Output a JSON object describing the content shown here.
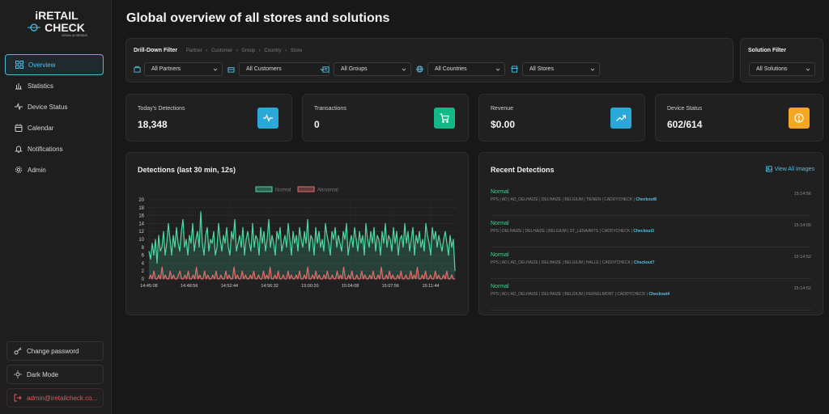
{
  "app": {
    "logo_line1": "iRETAIL",
    "logo_line2": "CHECK",
    "logo_tagline": "VISUAL AI SENSUS"
  },
  "sidebar": {
    "items": [
      {
        "label": "Overview",
        "icon": "grid-icon",
        "active": true
      },
      {
        "label": "Statistics",
        "icon": "bar-chart-icon"
      },
      {
        "label": "Device Status",
        "icon": "activity-icon"
      },
      {
        "label": "Calendar",
        "icon": "calendar-icon"
      },
      {
        "label": "Notifications",
        "icon": "bell-icon"
      },
      {
        "label": "Admin",
        "icon": "gear-icon"
      }
    ],
    "change_password": "Change password",
    "dark_mode": "Dark Mode",
    "user": "admin@iretailcheck.co..."
  },
  "page": {
    "title": "Global overview of all stores and solutions"
  },
  "drill": {
    "title": "Drill-Down Filter",
    "crumbs": [
      "Partner",
      "Customer",
      "Group",
      "Country",
      "Store"
    ],
    "selects": [
      "All Partners",
      "All Customers",
      "All Groups",
      "All Countries",
      "All Stores"
    ]
  },
  "solution": {
    "title": "Solution Filter",
    "value": "All Solutions"
  },
  "stats": [
    {
      "label": "Today's Detections",
      "value": "18,348",
      "icon": "pulse-icon",
      "color": "#2aa8d8"
    },
    {
      "label": "Transactions",
      "value": "0",
      "icon": "cart-icon",
      "color": "#12b886"
    },
    {
      "label": "Revenue",
      "value": "$0.00",
      "icon": "trend-up-icon",
      "color": "#2aa8d8"
    },
    {
      "label": "Device Status",
      "value": "602/614",
      "icon": "alert-circle-icon",
      "color": "#f5a623"
    }
  ],
  "chart_panel": {
    "title": "Detections (last 30 min, 12s)"
  },
  "chart_data": {
    "type": "area",
    "series": [
      {
        "name": "Normal",
        "color": "#4dd9a4",
        "values": [
          7,
          5,
          9,
          6,
          10,
          4,
          11,
          7,
          8,
          12,
          6,
          9,
          14,
          10,
          6,
          11,
          8,
          13,
          9,
          7,
          12,
          15,
          8,
          10,
          6,
          11,
          9,
          14,
          7,
          10,
          12,
          8,
          17,
          9,
          6,
          11,
          13,
          7,
          10,
          9,
          12,
          6,
          8,
          14,
          10,
          7,
          11,
          9,
          13,
          8,
          6,
          12,
          10,
          15,
          7,
          9,
          11,
          8,
          13,
          6,
          10,
          12,
          9,
          7,
          14,
          8,
          11,
          10,
          6,
          13,
          9,
          12,
          7,
          10,
          15,
          8,
          11,
          9,
          6,
          12,
          10,
          13,
          7,
          9,
          11,
          8,
          14,
          10,
          6,
          12,
          9,
          11,
          7,
          13,
          10,
          8,
          12,
          9,
          15,
          7,
          11,
          10,
          6,
          13,
          9,
          12,
          8,
          10,
          7,
          14,
          11,
          9,
          6,
          12,
          10,
          13,
          8,
          11,
          9,
          7,
          12,
          10,
          14,
          6,
          9,
          11,
          8,
          13,
          10,
          7,
          12,
          9,
          11,
          6,
          14,
          10,
          8,
          12,
          9,
          13,
          7,
          11,
          10,
          6,
          12,
          9,
          14,
          8,
          11,
          10,
          7,
          13,
          9,
          12,
          6,
          10,
          11,
          8,
          14,
          9,
          12,
          7,
          10,
          13,
          6,
          11,
          9,
          12,
          8,
          10,
          7,
          14,
          11,
          9,
          6,
          13,
          10,
          12,
          8,
          11,
          9,
          7,
          10,
          12,
          9,
          6,
          11,
          8,
          10,
          2
        ]
      },
      {
        "name": "Abnormal",
        "color": "#e36b6b",
        "values": [
          0,
          1,
          0,
          2,
          0,
          0,
          1,
          0,
          3,
          0,
          1,
          0,
          0,
          2,
          0,
          1,
          0,
          0,
          1,
          2,
          0,
          0,
          1,
          0,
          2,
          0,
          0,
          1,
          0,
          3,
          0,
          1,
          0,
          0,
          2,
          0,
          1,
          0,
          0,
          1,
          0,
          2,
          0,
          0,
          1,
          0,
          0,
          2,
          0,
          1,
          0,
          0,
          3,
          0,
          1,
          0,
          0,
          2,
          0,
          1,
          0,
          0,
          1,
          0,
          2,
          0,
          0,
          1,
          0,
          0,
          2,
          0,
          1,
          0,
          3,
          0,
          0,
          1,
          0,
          2,
          0,
          0,
          1,
          0,
          0,
          2,
          0,
          1,
          0,
          0,
          1,
          0,
          2,
          0,
          0,
          1,
          0,
          3,
          0,
          0,
          1,
          0,
          2,
          0,
          1,
          0,
          0,
          1,
          0,
          2,
          0,
          0,
          1,
          0,
          0,
          2,
          0,
          1,
          0,
          3,
          0,
          0,
          1,
          0,
          2,
          0,
          0,
          1,
          0,
          0,
          2,
          0,
          1,
          0,
          0,
          1,
          0,
          2,
          0,
          0,
          1,
          0,
          3,
          0,
          0,
          1,
          0,
          2,
          0,
          1,
          0,
          0,
          1,
          0,
          2,
          0,
          0,
          1,
          0,
          0,
          2,
          0,
          1,
          0,
          3,
          0,
          0,
          1,
          0,
          2,
          0,
          0,
          1,
          0,
          0,
          2,
          0,
          1,
          0,
          0,
          1,
          0,
          2,
          0,
          0,
          1,
          0,
          0
        ]
      }
    ],
    "x_ticks": [
      "14:45:08",
      "14:48:56",
      "14:52:44",
      "14:56:32",
      "15:00:20",
      "15:04:08",
      "15:07:56",
      "15:11:44"
    ],
    "y_ticks": [
      0,
      2,
      4,
      6,
      8,
      10,
      12,
      14,
      16,
      18,
      20
    ],
    "ylim": [
      0,
      20
    ],
    "grid": true,
    "legend": "top-center"
  },
  "recent": {
    "title": "Recent Detections",
    "view_all": "View All Images",
    "items": [
      {
        "status": "Normal",
        "meta": "PPS | AD | AD_DELHAIZE | DELHAIZE | BELGIUM | TIENEN | CADDYCHECK | ",
        "checkout": "Checkout8",
        "time": "15:14:56"
      },
      {
        "status": "Normal",
        "meta": "PPS | DELHAIZE | DELHAIZE | BELGIUM | ST_LENAARTS | CADDYCHECK | ",
        "checkout": "Checkout3",
        "time": "15:14:55"
      },
      {
        "status": "Normal",
        "meta": "PPS | AD | AD_DELHAIZE | DELHAIZE | BELGIUM | HALLE | CADDYCHECK | ",
        "checkout": "Checkout7",
        "time": "15:14:52"
      },
      {
        "status": "Normal",
        "meta": "PPS | AD | AD_DELHAIZE | DELHAIZE | BELGIUM | FERNELMONT | CADDYCHECK | ",
        "checkout": "Checkout4",
        "time": "15:14:52"
      }
    ]
  }
}
